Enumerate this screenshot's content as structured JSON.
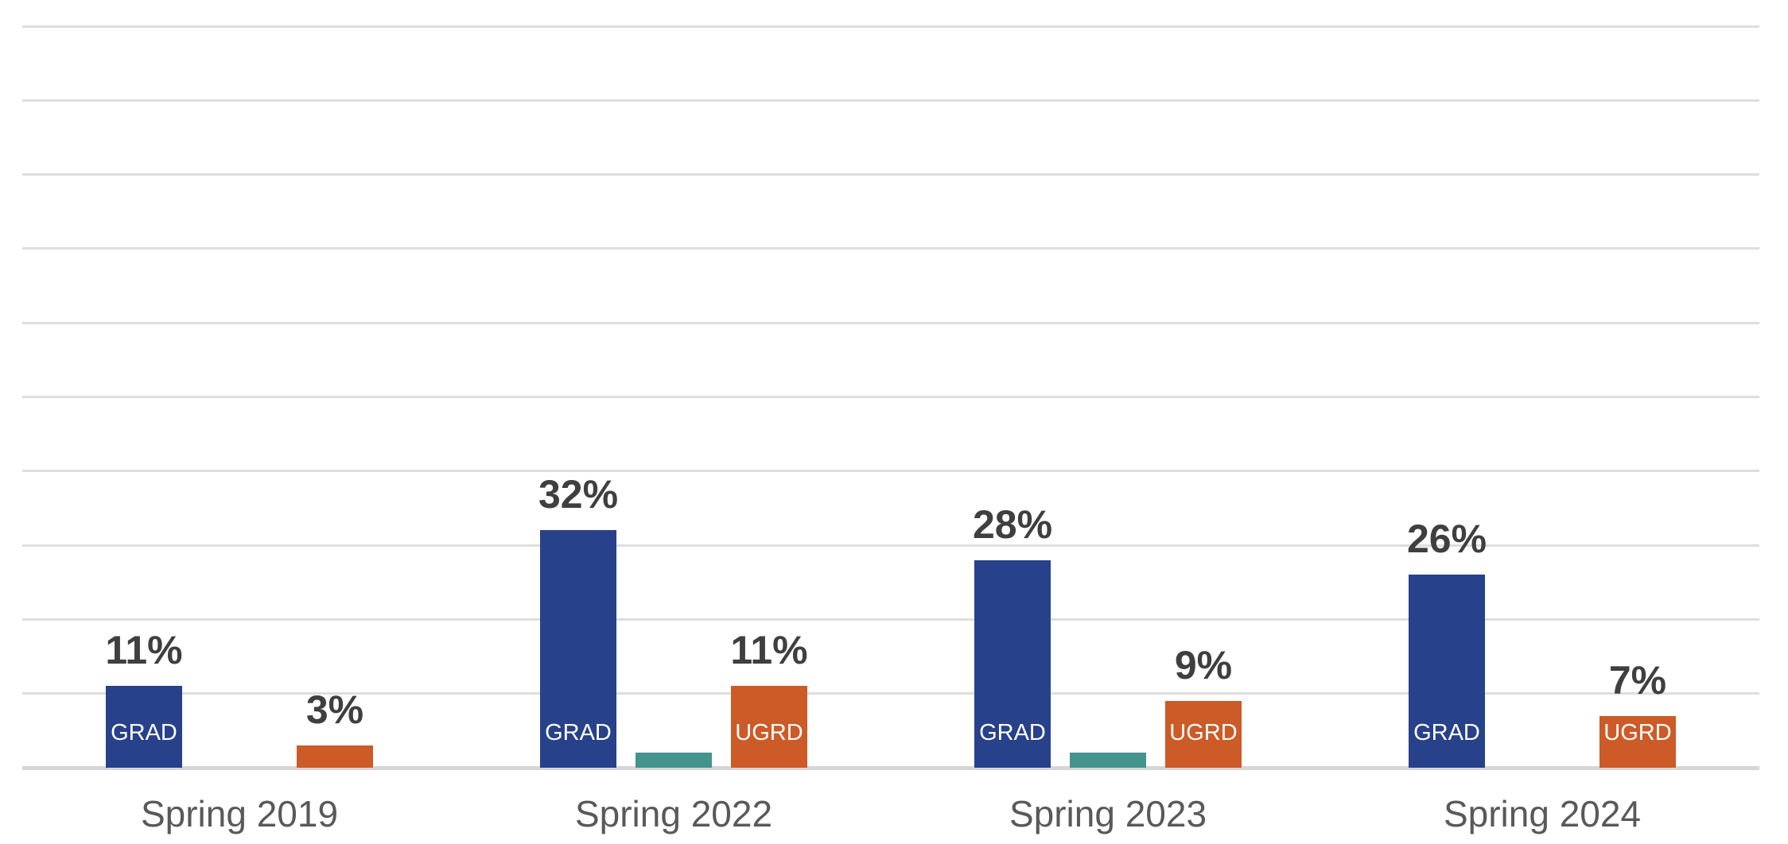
{
  "chart_data": {
    "type": "bar",
    "title": "",
    "xlabel": "",
    "ylabel": "",
    "categories": [
      "Spring 2019",
      "Spring 2022",
      "Spring 2023",
      "Spring 2024"
    ],
    "series": [
      {
        "name": "GRAD",
        "color": "#27418a",
        "values": [
          11,
          32,
          28,
          26
        ],
        "data_labels": [
          "11%",
          "32%",
          "28%",
          "26%"
        ],
        "bar_texts": [
          "GRAD",
          "GRAD",
          "GRAD",
          "GRAD"
        ]
      },
      {
        "name": "",
        "color": "#43948d",
        "values": [
          0,
          2,
          2,
          0
        ],
        "data_labels": [
          "",
          "",
          "",
          ""
        ],
        "bar_texts": [
          "",
          "",
          "",
          ""
        ]
      },
      {
        "name": "UGRD",
        "color": "#cc5b27",
        "values": [
          3,
          11,
          9,
          7
        ],
        "data_labels": [
          "3%",
          "11%",
          "9%",
          "7%"
        ],
        "bar_texts": [
          "",
          "UGRD",
          "UGRD",
          "UGRD"
        ]
      }
    ],
    "ylim": [
      0,
      100
    ],
    "gridline_step": 10,
    "grid": "horizontal",
    "legend_position": "none",
    "axis_tick_labels_visible": false,
    "colors": {
      "gridline": "#dedede",
      "axis_line": "#d6d6d6",
      "data_label_text": "#3f3f3f",
      "category_label_text": "#595959",
      "in_bar_label_text": "#ffffff",
      "background": "#ffffff"
    }
  }
}
